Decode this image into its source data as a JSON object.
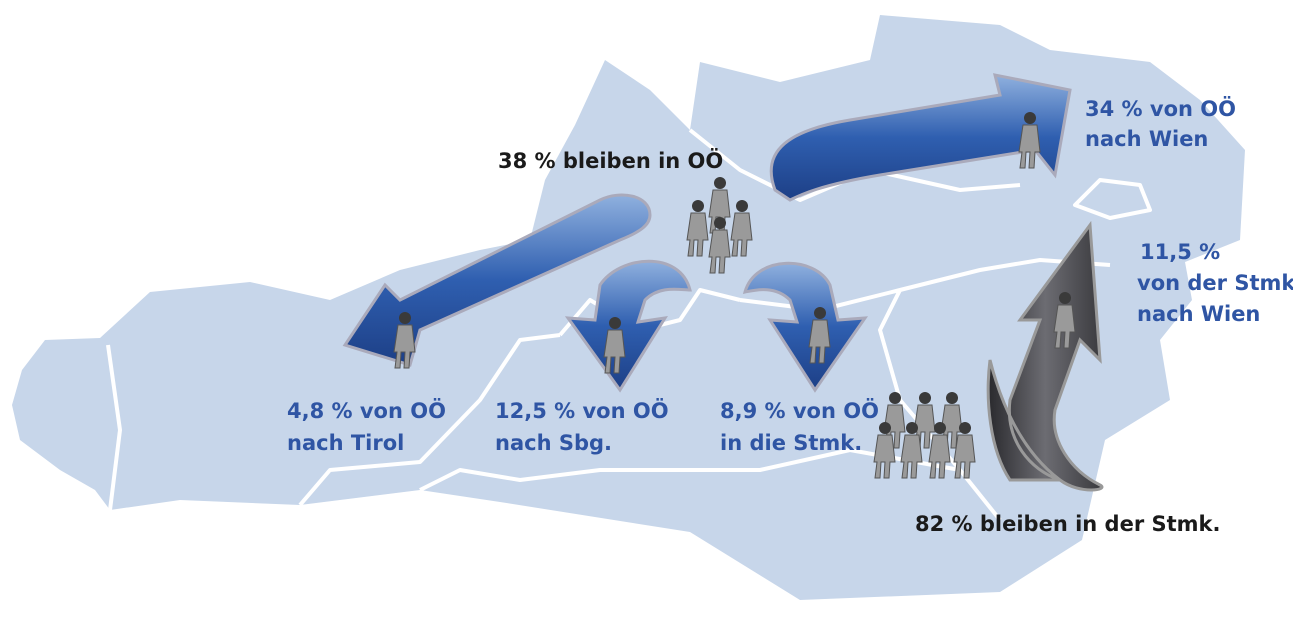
{
  "labels": [
    {
      "lines": [
        "38 % bleiben in OÖ"
      ]
    },
    {
      "lines": [
        "34 % von OÖ",
        "nach Wien"
      ]
    },
    {
      "lines": [
        "11,5 %",
        "von der Stmk.",
        "nach Wien"
      ]
    },
    {
      "lines": [
        "4,8 % von OÖ",
        "nach Tirol"
      ]
    },
    {
      "lines": [
        "12,5 % von OÖ",
        "nach Sbg."
      ]
    },
    {
      "lines": [
        "8,9 % von OÖ",
        "in die Stmk."
      ]
    },
    {
      "lines": [
        "82 % bleiben in der Stmk."
      ]
    }
  ]
}
